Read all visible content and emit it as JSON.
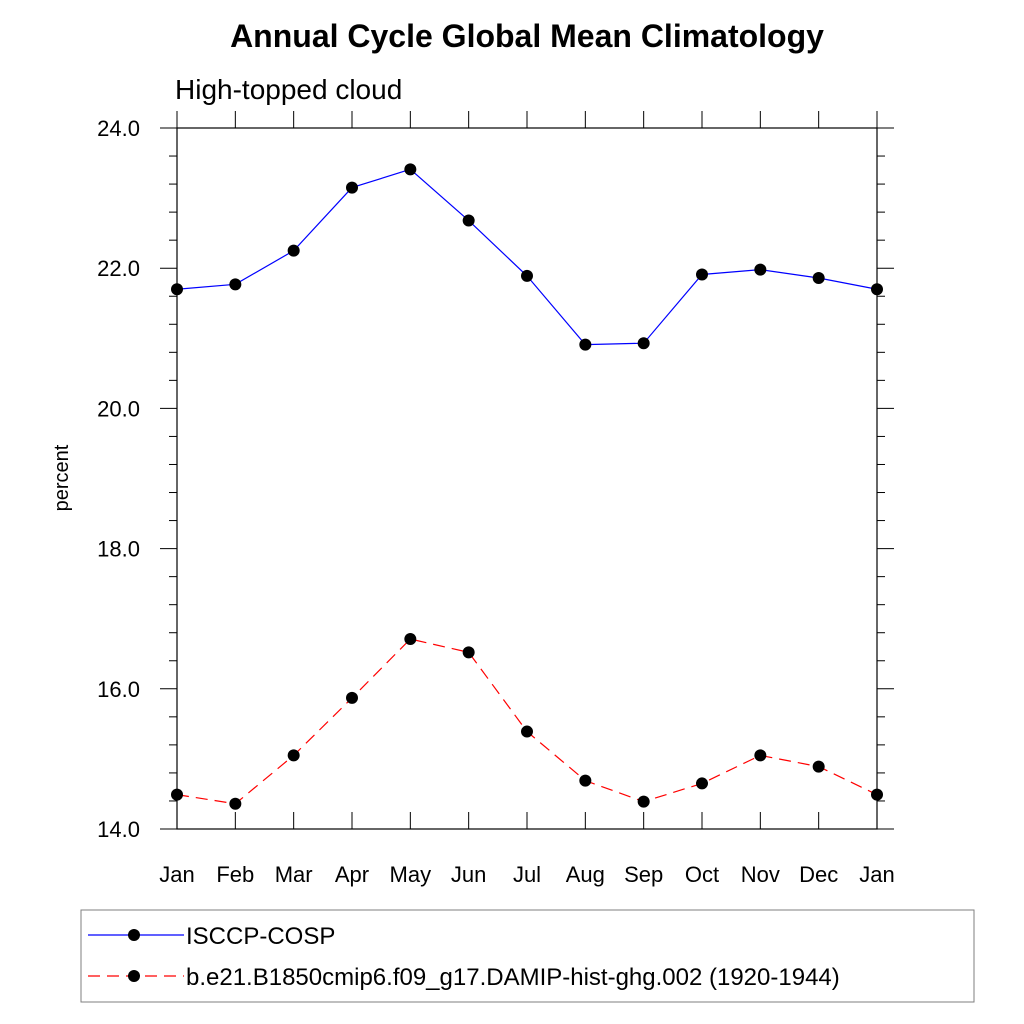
{
  "chart_data": {
    "type": "line",
    "title": "Annual Cycle Global Mean Climatology",
    "subtitle": "High-topped cloud",
    "xlabel": "",
    "ylabel": "percent",
    "categories": [
      "Jan",
      "Feb",
      "Mar",
      "Apr",
      "May",
      "Jun",
      "Jul",
      "Aug",
      "Sep",
      "Oct",
      "Nov",
      "Dec",
      "Jan"
    ],
    "ylim": [
      14.0,
      24.0
    ],
    "yticks": [
      "14.0",
      "16.0",
      "18.0",
      "20.0",
      "22.0",
      "24.0"
    ],
    "grid": false,
    "legend_position": "bottom",
    "series": [
      {
        "name": "ISCCP-COSP",
        "color": "#0000ff",
        "line_style": "solid",
        "marker": "filled-circle",
        "values": [
          21.7,
          21.77,
          22.25,
          23.15,
          23.41,
          22.68,
          21.89,
          20.91,
          20.93,
          21.91,
          21.98,
          21.86,
          21.7
        ]
      },
      {
        "name": "b.e21.B1850cmip6.f09_g17.DAMIP-hist-ghg.002 (1920-1944)",
        "color": "#ff0000",
        "line_style": "dashed",
        "marker": "filled-circle",
        "values": [
          14.49,
          14.36,
          15.05,
          15.87,
          16.71,
          16.52,
          15.39,
          14.69,
          14.39,
          14.65,
          15.05,
          14.89,
          14.49
        ]
      }
    ]
  }
}
